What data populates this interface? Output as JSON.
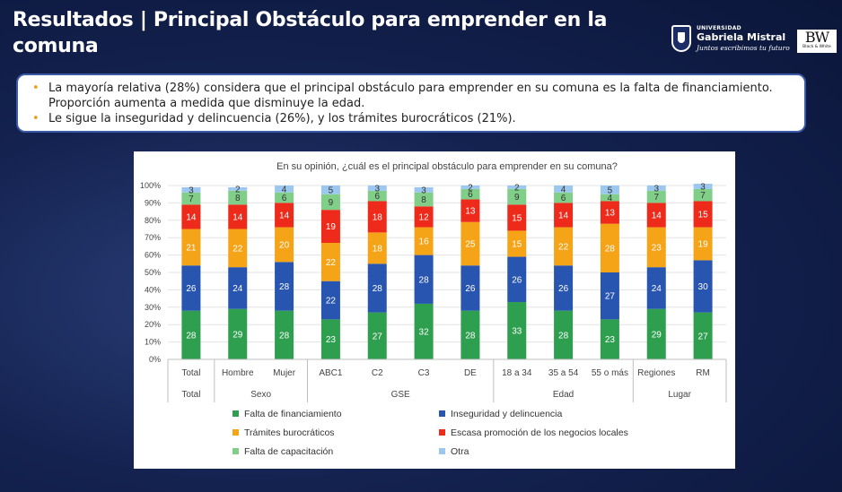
{
  "header": {
    "title": "Resultados | Principal Obstáculo para emprender en la comuna"
  },
  "logos": {
    "university_small": "UNIVERSIDAD",
    "university_name": "Gabriela Mistral",
    "university_slogan": "Juntos escribimos tu futuro",
    "partner_mark": "BW",
    "partner_sub": "Black & White"
  },
  "summary": {
    "bullets": [
      "La mayoría relativa (28%) considera que el principal obstáculo para emprender en su comuna es la falta de financiamiento. Proporción aumenta a medida que disminuye la edad.",
      "Le sigue la inseguridad y delincuencia (26%), y los trámites burocráticos (21%)."
    ]
  },
  "chart_data": {
    "type": "bar",
    "stacked": true,
    "title": "En su opinión, ¿cuál es el principal obstáculo para emprender en su comuna?",
    "ylim": [
      0,
      100
    ],
    "y_ticks": [
      "0%",
      "10%",
      "20%",
      "30%",
      "40%",
      "50%",
      "60%",
      "70%",
      "80%",
      "90%",
      "100%"
    ],
    "categories": [
      "Total",
      "Hombre",
      "Mujer",
      "ABC1",
      "C2",
      "C3",
      "DE",
      "18 a 34",
      "35 a 54",
      "55 o más",
      "Regiones",
      "RM"
    ],
    "groups": [
      {
        "label": "Total",
        "count": 1
      },
      {
        "label": "Sexo",
        "count": 2
      },
      {
        "label": "GSE",
        "count": 4
      },
      {
        "label": "Edad",
        "count": 3
      },
      {
        "label": "Lugar",
        "count": 2
      }
    ],
    "series": [
      {
        "name": "Falta de financiamiento",
        "color": "#2e9e4f",
        "values": [
          28,
          29,
          28,
          23,
          27,
          32,
          28,
          33,
          28,
          23,
          29,
          27
        ]
      },
      {
        "name": "Inseguridad y delincuencia",
        "color": "#2755b0",
        "values": [
          26,
          24,
          28,
          22,
          28,
          28,
          26,
          26,
          26,
          27,
          24,
          30
        ]
      },
      {
        "name": "Trámites burocráticos",
        "color": "#f5a317",
        "values": [
          21,
          22,
          20,
          22,
          18,
          16,
          25,
          15,
          22,
          28,
          23,
          19
        ]
      },
      {
        "name": "Escasa promoción de los negocios locales",
        "color": "#ee2a1b",
        "values": [
          14,
          14,
          14,
          19,
          18,
          12,
          13,
          15,
          14,
          13,
          14,
          15
        ]
      },
      {
        "name": "Falta de capacitación",
        "color": "#80ce87",
        "values": [
          7,
          8,
          6,
          9,
          6,
          8,
          6,
          9,
          6,
          4,
          7,
          7
        ]
      },
      {
        "name": "Otra",
        "color": "#9cc8ef",
        "values": [
          3,
          2,
          4,
          5,
          3,
          3,
          2,
          2,
          4,
          5,
          3,
          3
        ]
      }
    ],
    "legend_position": "bottom",
    "grid": true
  }
}
